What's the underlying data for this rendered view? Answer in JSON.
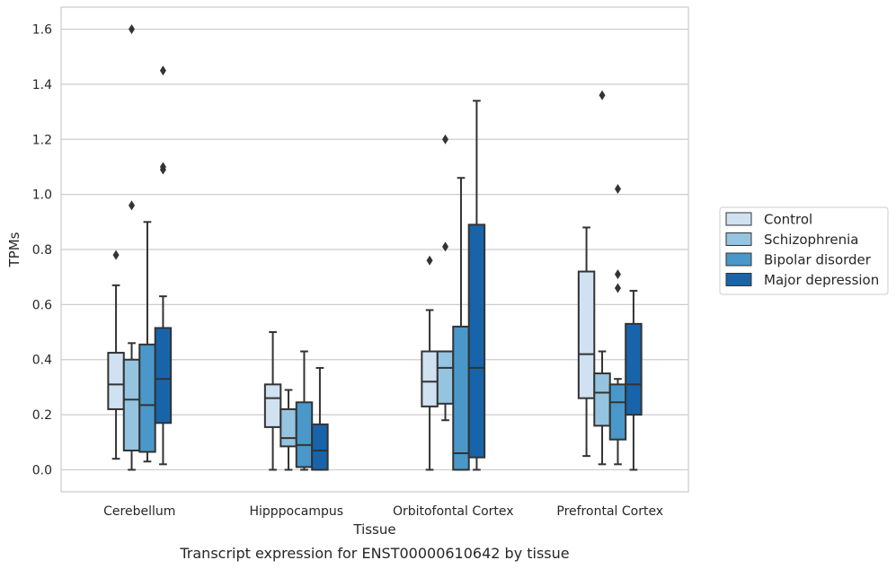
{
  "caption": "Transcript expression for ENST00000610642 by tissue",
  "chart_data": {
    "type": "box",
    "xlabel": "Tissue",
    "ylabel": "TPMs",
    "ylim": [
      -0.08,
      1.68
    ],
    "yticks": [
      "0.0",
      "0.2",
      "0.4",
      "0.6",
      "0.8",
      "1.0",
      "1.2",
      "1.4",
      "1.6"
    ],
    "grid": "horizontal",
    "legend_position": "right",
    "categories": [
      "Cerebellum",
      "Hipppocampus",
      "Orbitofontal Cortex",
      "Prefrontal Cortex"
    ],
    "series": [
      {
        "name": "Control",
        "color": "#d0e1f2",
        "boxes": [
          {
            "whislo": 0.04,
            "q1": 0.22,
            "med": 0.31,
            "q3": 0.425,
            "whishi": 0.67,
            "fliers": [
              0.78
            ]
          },
          {
            "whislo": 0.0,
            "q1": 0.155,
            "med": 0.26,
            "q3": 0.31,
            "whishi": 0.5,
            "fliers": []
          },
          {
            "whislo": 0.0,
            "q1": 0.23,
            "med": 0.32,
            "q3": 0.43,
            "whishi": 0.58,
            "fliers": [
              0.76
            ]
          },
          {
            "whislo": 0.05,
            "q1": 0.26,
            "med": 0.42,
            "q3": 0.72,
            "whishi": 0.88,
            "fliers": []
          }
        ]
      },
      {
        "name": "Schizophrenia",
        "color": "#94c4df",
        "boxes": [
          {
            "whislo": 0.0,
            "q1": 0.07,
            "med": 0.255,
            "q3": 0.4,
            "whishi": 0.46,
            "fliers": [
              0.96,
              1.6
            ]
          },
          {
            "whislo": 0.0,
            "q1": 0.085,
            "med": 0.115,
            "q3": 0.22,
            "whishi": 0.29,
            "fliers": []
          },
          {
            "whislo": 0.18,
            "q1": 0.24,
            "med": 0.37,
            "q3": 0.43,
            "whishi": 0.43,
            "fliers": [
              0.81,
              1.2
            ]
          },
          {
            "whislo": 0.02,
            "q1": 0.16,
            "med": 0.28,
            "q3": 0.35,
            "whishi": 0.43,
            "fliers": [
              1.36
            ]
          }
        ]
      },
      {
        "name": "Bipolar disorder",
        "color": "#4a98c9",
        "boxes": [
          {
            "whislo": 0.03,
            "q1": 0.065,
            "med": 0.235,
            "q3": 0.455,
            "whishi": 0.9,
            "fliers": []
          },
          {
            "whislo": 0.0,
            "q1": 0.01,
            "med": 0.09,
            "q3": 0.245,
            "whishi": 0.43,
            "fliers": []
          },
          {
            "whislo": 0.0,
            "q1": 0.0,
            "med": 0.06,
            "q3": 0.52,
            "whishi": 1.06,
            "fliers": []
          },
          {
            "whislo": 0.02,
            "q1": 0.11,
            "med": 0.245,
            "q3": 0.31,
            "whishi": 0.33,
            "fliers": [
              0.66,
              0.71,
              1.02
            ]
          }
        ]
      },
      {
        "name": "Major depression",
        "color": "#1764ab",
        "boxes": [
          {
            "whislo": 0.02,
            "q1": 0.17,
            "med": 0.33,
            "q3": 0.515,
            "whishi": 0.63,
            "fliers": [
              1.09,
              1.1,
              1.45
            ]
          },
          {
            "whislo": 0.0,
            "q1": 0.0,
            "med": 0.07,
            "q3": 0.165,
            "whishi": 0.37,
            "fliers": []
          },
          {
            "whislo": 0.0,
            "q1": 0.045,
            "med": 0.37,
            "q3": 0.89,
            "whishi": 1.34,
            "fliers": []
          },
          {
            "whislo": 0.0,
            "q1": 0.2,
            "med": 0.31,
            "q3": 0.53,
            "whishi": 0.65,
            "fliers": []
          }
        ]
      }
    ]
  }
}
